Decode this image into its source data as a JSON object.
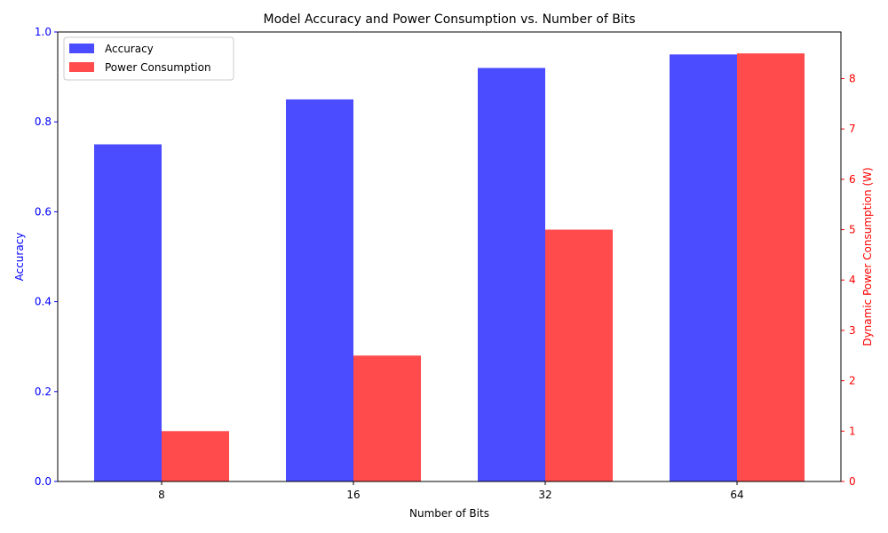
{
  "chart_data": {
    "type": "bar",
    "title": "Model Accuracy and Power Consumption vs. Number of Bits",
    "xlabel": "Number of Bits",
    "categories": [
      "8",
      "16",
      "32",
      "64"
    ],
    "series": [
      {
        "name": "Accuracy",
        "axis": "left",
        "color": "#4b4bff",
        "values": [
          0.75,
          0.85,
          0.92,
          0.95
        ]
      },
      {
        "name": "Power Consumption",
        "axis": "right",
        "color": "#ff4b4b",
        "values": [
          1.0,
          2.5,
          5.0,
          8.5
        ]
      }
    ],
    "y_left": {
      "label": "Accuracy",
      "color": "#0000ff",
      "ylim": [
        0,
        1.0
      ],
      "ticks": [
        "0.0",
        "0.2",
        "0.4",
        "0.6",
        "0.8",
        "1.0"
      ]
    },
    "y_right": {
      "label": "Dynamic Power Consumption (W)",
      "color": "#ff0000",
      "ylim": [
        0,
        8.925
      ],
      "ticks": [
        "0",
        "1",
        "2",
        "3",
        "4",
        "5",
        "6",
        "7",
        "8"
      ]
    },
    "legend": "top-left",
    "grid": false
  }
}
